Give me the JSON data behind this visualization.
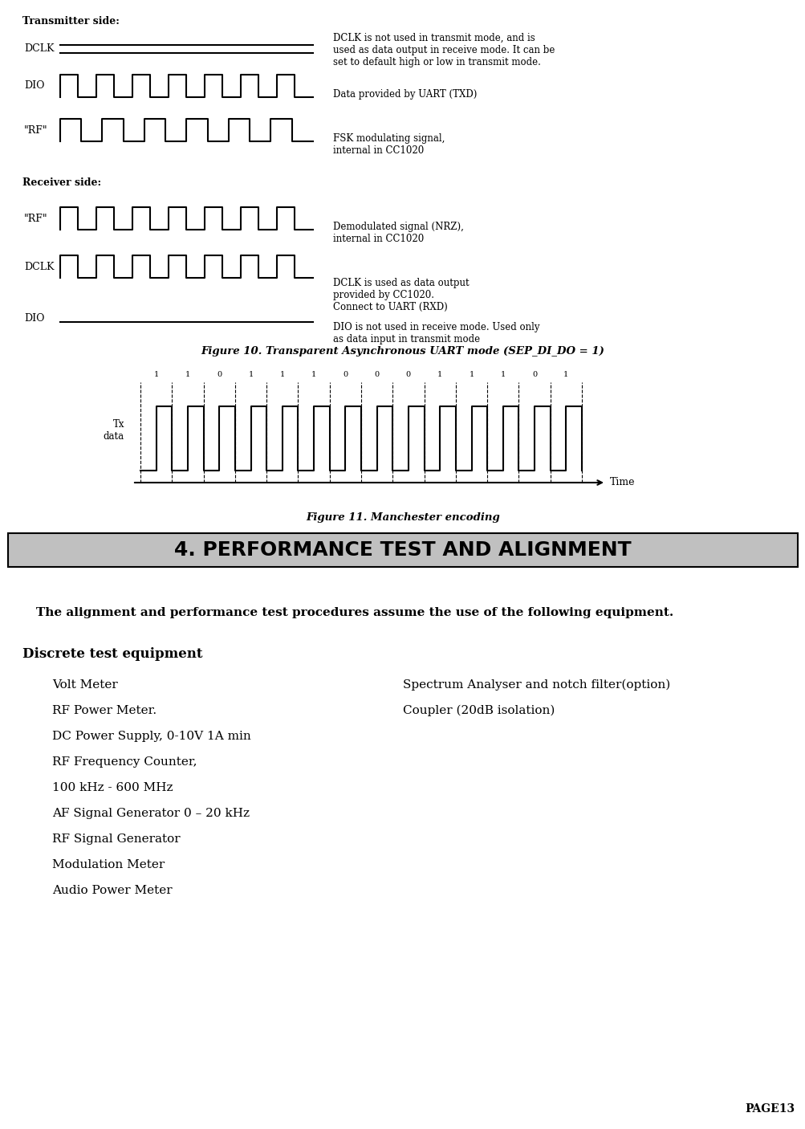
{
  "bg_color": "#f0f0f0",
  "page_bg": "#ffffff",
  "section_header": "4. PERFORMANCE TEST AND ALIGNMENT",
  "section_header_bg": "#c0c0c0",
  "section_header_color": "#000000",
  "intro_text": "The alignment and performance test procedures assume the use of the following equipment.",
  "subsection_header": "Discrete test equipment",
  "left_column": [
    "Volt Meter",
    "RF Power Meter.",
    "DC Power Supply, 0-10V 1A min",
    "RF Frequency Counter,",
    "100 kHz - 600 MHz",
    "AF Signal Generator 0 – 20 kHz",
    "RF Signal Generator",
    "Modulation Meter",
    "Audio Power Meter"
  ],
  "right_column": [
    "Spectrum Analyser and notch filter(option)",
    "Coupler (20dB isolation)"
  ],
  "page_label": "PAGE13",
  "transmitter_label": "Transmitter side:",
  "receiver_label": "Receiver side:",
  "fig10_caption": "Figure 10. Transparent Asynchronous UART mode (SEP_DI_DO = 1)",
  "fig11_caption": "Figure 11. Manchester encoding",
  "signal_labels_tx": [
    "DCLK",
    "DIO",
    "“RF”"
  ],
  "signal_labels_rx": [
    "“RF”",
    "DCLK",
    "DIO"
  ],
  "tx_annotations": [
    "DCLK is not used in transmit mode, and is\nused as data output in receive mode. It can be\nset to default high or low in transmit mode.",
    "Data provided by UART (TXD)",
    "FSK modulating signal,\ninternal in CC1020"
  ],
  "rx_annotations": [
    "Demodulated signal (NRZ),\ninternal in CC1020",
    "DCLK is used as data output\nprovided by CC1020.\nConnect to UART (RXD)",
    "DIO is not used in receive mode. Used only\nas data input in transmit mode"
  ]
}
